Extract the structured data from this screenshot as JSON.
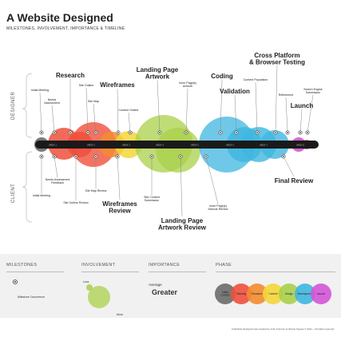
{
  "title": "A Website Designed",
  "subtitle": "MILESTONES, INVOLVEMENT, IMPORTANCE & TIMELINE",
  "axis": {
    "top": "DESIGNER",
    "bottom": "CLIENT"
  },
  "colors": {
    "bar": "#1a1a1a",
    "initial": "#6b6b6b",
    "planning": "#f0503c",
    "research": "#f28c2f",
    "content": "#f5d63a",
    "design": "#a9d04a",
    "development": "#3fb6e0",
    "launch": "#d455d6"
  },
  "milestones_designer": [
    {
      "label": "Initial Meeting",
      "size": "small"
    },
    {
      "label": "Needs\nAssessment",
      "size": "small"
    },
    {
      "label": "Research",
      "size": "large"
    },
    {
      "label": "Site Outline",
      "size": "small"
    },
    {
      "label": "Site Map",
      "size": "small"
    },
    {
      "label": "Wireframes",
      "size": "large"
    },
    {
      "label": "Content Outline",
      "size": "small"
    },
    {
      "label": "Landing Page\nArtwork",
      "size": "large"
    },
    {
      "label": "Inner Page(s)\nArtwork",
      "size": "small"
    },
    {
      "label": "Coding",
      "size": "large"
    },
    {
      "label": "Validation",
      "size": "large"
    },
    {
      "label": "Content Population",
      "size": "small"
    },
    {
      "label": "Cross Platform\n& Browser Testing",
      "size": "large"
    },
    {
      "label": "Refinement",
      "size": "small"
    },
    {
      "label": "Search Engine\nSubmission",
      "size": "small"
    },
    {
      "label": "Launch",
      "size": "large"
    }
  ],
  "milestones_client": [
    {
      "label": "Initial Meeting",
      "size": "small"
    },
    {
      "label": "Needs Assessment\nFeedback",
      "size": "small"
    },
    {
      "label": "Site Outline Review",
      "size": "small"
    },
    {
      "label": "Site Map Review",
      "size": "small"
    },
    {
      "label": "Wireframes\nReview",
      "size": "large"
    },
    {
      "label": "Site Content\nSubmission",
      "size": "small"
    },
    {
      "label": "Landing Page\nArtwork Review",
      "size": "large"
    },
    {
      "label": "Inner Page(s)\nArtwork Review",
      "size": "small"
    },
    {
      "label": "Final Review",
      "size": "large"
    }
  ],
  "weeks": [
    "WEEK 1",
    "WEEK 2",
    "WEEK 3",
    "WEEK 4",
    "WEEK 5",
    "WEEK 6",
    "WEEK 7",
    "WEEK 8"
  ],
  "legend": {
    "milestones": {
      "heading": "MILESTONES",
      "item": "Milestone Occurrence"
    },
    "involvement": {
      "heading": "INVOLVEMENT",
      "less": "Less",
      "more": "More"
    },
    "importance": {
      "heading": "IMPORTANCE",
      "average": "Average",
      "greater": "Greater"
    },
    "phase": {
      "heading": "PHASE",
      "items": [
        {
          "label": "Initial\nContact",
          "color": "#6b6b6b"
        },
        {
          "label": "Planning",
          "color": "#f0503c"
        },
        {
          "label": "Research",
          "color": "#f28c2f"
        },
        {
          "label": "Content",
          "color": "#f5d63a"
        },
        {
          "label": "Design",
          "color": "#a9d04a"
        },
        {
          "label": "Development",
          "color": "#3fb6e0"
        },
        {
          "label": "Launch",
          "color": "#d455d6"
        }
      ]
    }
  },
  "credit": "A Website Designed was created by John Furness of Simple Square © 2011 – All rights reserved."
}
